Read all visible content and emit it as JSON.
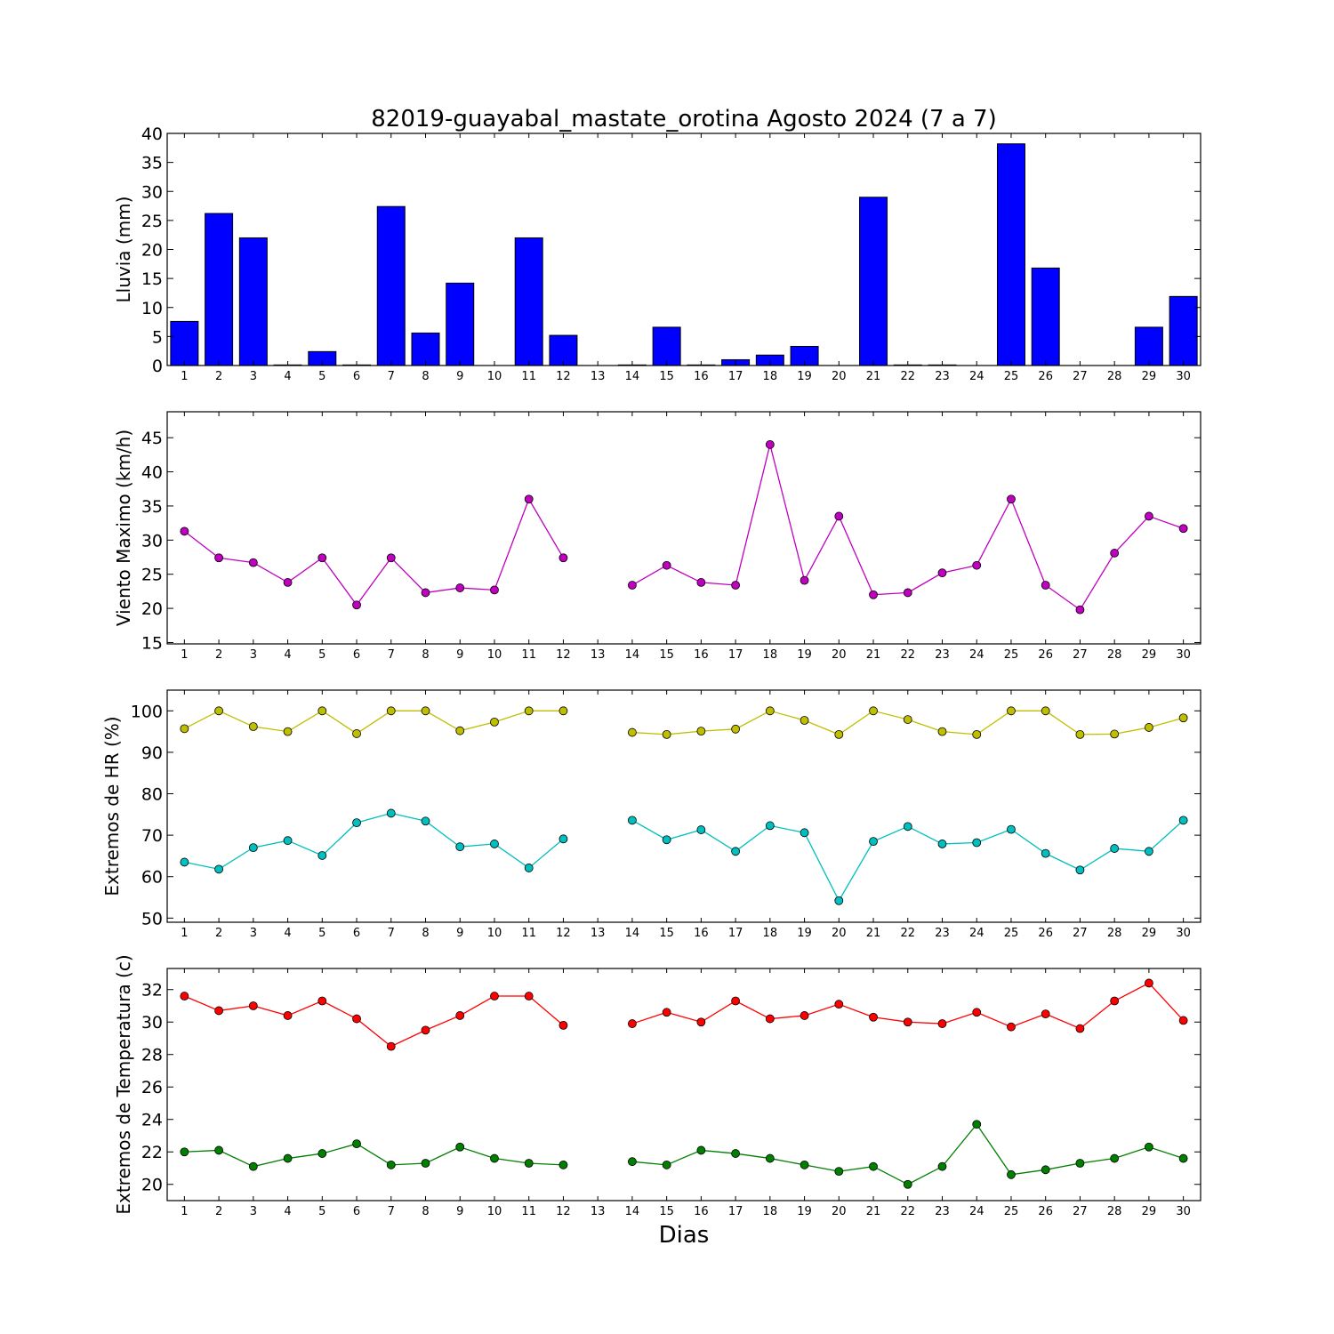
{
  "figure_title": "82019-guayabal_mastate_orotina Agosto 2024  (7 a 7)",
  "x_axis_label": "Dias",
  "chart_data": [
    {
      "type": "bar",
      "ylabel": "Lluvia (mm)",
      "ylim": [
        0,
        40
      ],
      "yticks": [
        0,
        5,
        10,
        15,
        20,
        25,
        30,
        35,
        40
      ],
      "xlim": [
        0.5,
        30.5
      ],
      "categories": [
        1,
        2,
        3,
        4,
        5,
        6,
        7,
        8,
        9,
        10,
        11,
        12,
        13,
        14,
        15,
        16,
        17,
        18,
        19,
        20,
        21,
        22,
        23,
        24,
        25,
        26,
        27,
        28,
        29,
        30
      ],
      "series": [
        {
          "color": "#0000ff",
          "values": [
            7.6,
            26.2,
            22.0,
            0.1,
            2.4,
            0.1,
            27.4,
            5.6,
            14.2,
            0,
            22.0,
            5.2,
            0,
            0.1,
            6.6,
            0.1,
            1.0,
            1.8,
            3.3,
            0,
            29.0,
            0.1,
            0.1,
            0,
            38.2,
            16.8,
            0,
            0,
            6.6,
            11.9
          ]
        }
      ]
    },
    {
      "type": "line",
      "ylabel": "Viento Maximo (km/h)",
      "ylim": [
        14.8,
        48.8
      ],
      "yticks": [
        15,
        20,
        25,
        30,
        35,
        40,
        45
      ],
      "xlim": [
        0.5,
        30.5
      ],
      "x": [
        1,
        2,
        3,
        4,
        5,
        6,
        7,
        8,
        9,
        10,
        11,
        12,
        13,
        14,
        15,
        16,
        17,
        18,
        19,
        20,
        21,
        22,
        23,
        24,
        25,
        26,
        27,
        28,
        29,
        30
      ],
      "series": [
        {
          "color": "#bf00bf",
          "values": [
            31.3,
            27.4,
            26.7,
            23.8,
            27.4,
            20.5,
            27.4,
            22.3,
            23.0,
            22.7,
            36.0,
            27.4,
            null,
            23.4,
            26.3,
            23.8,
            23.4,
            44.0,
            24.1,
            33.5,
            22.0,
            22.3,
            25.2,
            26.3,
            36.0,
            23.4,
            19.8,
            28.1,
            33.5,
            31.7
          ]
        }
      ]
    },
    {
      "type": "line",
      "ylabel": "Extremos de HR (%)",
      "ylim": [
        49,
        105
      ],
      "yticks": [
        50,
        60,
        70,
        80,
        90,
        100
      ],
      "xlim": [
        0.5,
        30.5
      ],
      "x": [
        1,
        2,
        3,
        4,
        5,
        6,
        7,
        8,
        9,
        10,
        11,
        12,
        13,
        14,
        15,
        16,
        17,
        18,
        19,
        20,
        21,
        22,
        23,
        24,
        25,
        26,
        27,
        28,
        29,
        30
      ],
      "series": [
        {
          "color": "#bfbf00",
          "values": [
            95.7,
            100,
            96.2,
            95.0,
            100,
            94.5,
            100,
            100,
            95.2,
            97.3,
            100,
            100,
            null,
            94.8,
            94.3,
            95.1,
            95.6,
            100,
            97.7,
            94.3,
            100,
            97.9,
            95.0,
            94.3,
            100,
            100,
            94.3,
            94.4,
            96.0,
            98.3
          ]
        },
        {
          "color": "#00bfbf",
          "values": [
            63.5,
            61.8,
            67.0,
            68.7,
            65.1,
            73.0,
            75.3,
            73.4,
            67.2,
            67.9,
            62.1,
            69.1,
            null,
            73.6,
            68.9,
            71.3,
            66.1,
            72.3,
            70.6,
            54.2,
            68.5,
            72.1,
            67.9,
            68.2,
            71.4,
            65.6,
            61.6,
            66.8,
            66.1,
            73.6
          ]
        }
      ]
    },
    {
      "type": "line",
      "ylabel": "Extremos de Temperatura (c)",
      "ylim": [
        19,
        33.3
      ],
      "yticks": [
        20,
        22,
        24,
        26,
        28,
        30,
        32
      ],
      "xlim": [
        0.5,
        30.5
      ],
      "x": [
        1,
        2,
        3,
        4,
        5,
        6,
        7,
        8,
        9,
        10,
        11,
        12,
        13,
        14,
        15,
        16,
        17,
        18,
        19,
        20,
        21,
        22,
        23,
        24,
        25,
        26,
        27,
        28,
        29,
        30
      ],
      "series": [
        {
          "color": "#ff0000",
          "values": [
            31.6,
            30.7,
            31.0,
            30.4,
            31.3,
            30.2,
            28.5,
            29.5,
            30.4,
            31.6,
            31.6,
            29.8,
            null,
            29.9,
            30.6,
            30.0,
            31.3,
            30.2,
            30.4,
            31.1,
            30.3,
            30.0,
            29.9,
            30.6,
            29.7,
            30.5,
            29.6,
            31.3,
            32.4,
            30.1
          ]
        },
        {
          "color": "#007f00",
          "values": [
            22.0,
            22.1,
            21.1,
            21.6,
            21.9,
            22.5,
            21.2,
            21.3,
            22.3,
            21.6,
            21.3,
            21.2,
            null,
            21.4,
            21.2,
            22.1,
            21.9,
            21.6,
            21.2,
            20.8,
            21.1,
            20.0,
            21.1,
            23.7,
            20.6,
            20.9,
            21.3,
            21.6,
            22.3,
            21.6
          ]
        }
      ]
    }
  ]
}
